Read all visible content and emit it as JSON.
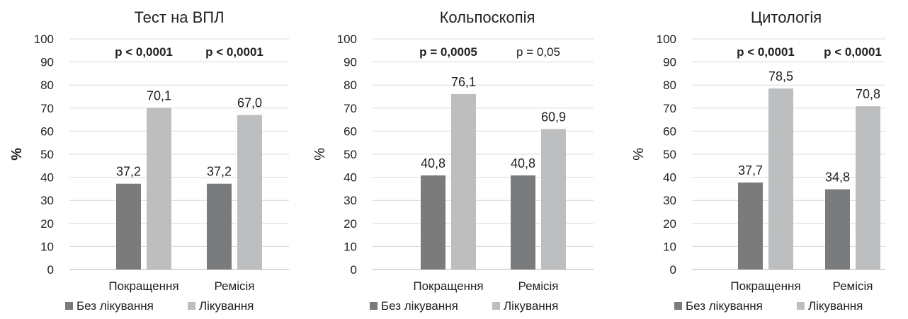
{
  "colors": {
    "without_treatment": "#7a7b7d",
    "treatment": "#bdbec0",
    "grid": "#d9d9d9",
    "axis": "#c0c0c0"
  },
  "chart_data": [
    {
      "type": "bar",
      "title": "Тест на ВПЛ",
      "ylabel": "%",
      "ylim": [
        0,
        100
      ],
      "yticks": [
        0,
        10,
        20,
        30,
        40,
        50,
        60,
        70,
        80,
        90,
        100
      ],
      "categories": [
        "Покращення",
        "Ремісія"
      ],
      "series": [
        {
          "name": "Без лікування",
          "values": [
            37.2,
            37.2
          ],
          "labels": [
            "37,2",
            "37,2"
          ]
        },
        {
          "name": "Лікування",
          "values": [
            70.1,
            67.0
          ],
          "labels": [
            "70,1",
            "67,0"
          ]
        }
      ],
      "annotations": [
        {
          "text": "p < 0,0001",
          "bold": true
        },
        {
          "text": "p < 0,0001",
          "bold": true
        }
      ],
      "legend": "bottom",
      "grid": true
    },
    {
      "type": "bar",
      "title": "Кольпоскопія",
      "ylabel": "%",
      "ylim": [
        0,
        100
      ],
      "yticks": [
        0,
        10,
        20,
        30,
        40,
        50,
        60,
        70,
        80,
        90,
        100
      ],
      "categories": [
        "Покращення",
        "Ремісія"
      ],
      "series": [
        {
          "name": "Без лікування",
          "values": [
            40.8,
            40.8
          ],
          "labels": [
            "40,8",
            "40,8"
          ]
        },
        {
          "name": "Лікування",
          "values": [
            76.1,
            60.9
          ],
          "labels": [
            "76,1",
            "60,9"
          ]
        }
      ],
      "annotations": [
        {
          "text": "p = 0,0005",
          "bold": true
        },
        {
          "text": "p = 0,05",
          "bold": false
        }
      ],
      "legend": "bottom",
      "grid": true
    },
    {
      "type": "bar",
      "title": "Цитологія",
      "ylabel": "%",
      "ylim": [
        0,
        100
      ],
      "yticks": [
        0,
        10,
        20,
        30,
        40,
        50,
        60,
        70,
        80,
        90,
        100
      ],
      "categories": [
        "Покращення",
        "Ремісія"
      ],
      "series": [
        {
          "name": "Без лікування",
          "values": [
            37.7,
            34.8
          ],
          "labels": [
            "37,7",
            "34,8"
          ]
        },
        {
          "name": "Лікування",
          "values": [
            78.5,
            70.8
          ],
          "labels": [
            "78,5",
            "70,8"
          ]
        }
      ],
      "annotations": [
        {
          "text": "p < 0,0001",
          "bold": true
        },
        {
          "text": "p < 0,0001",
          "bold": true
        }
      ],
      "legend": "bottom",
      "grid": true
    }
  ]
}
